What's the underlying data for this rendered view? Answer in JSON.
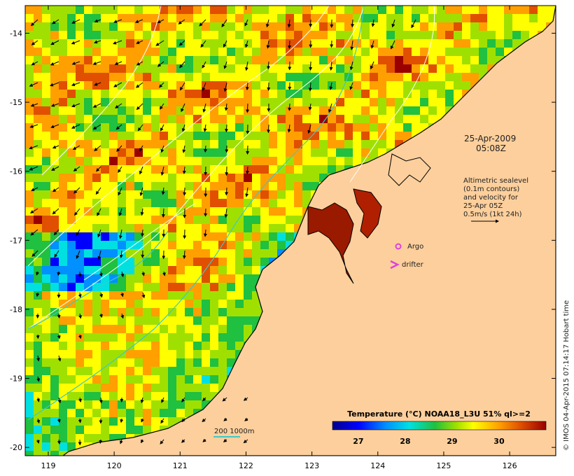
{
  "map": {
    "x_axis": {
      "min": 118.65,
      "max": 126.7,
      "ticks": [
        119,
        120,
        121,
        122,
        123,
        124,
        125,
        126
      ]
    },
    "y_axis": {
      "min": -20.12,
      "max": -13.6,
      "ticks": [
        -14,
        -15,
        -16,
        -17,
        -18,
        -19,
        -20
      ]
    },
    "colors": {
      "land": "#fccf9c",
      "coast": "#000000",
      "contour": "#ffffff",
      "isobath": "#3fc8c8",
      "arrow": "#000000",
      "argo": "#e040e0"
    }
  },
  "annotations": {
    "date": "25-Apr-2009",
    "time": "05:08Z",
    "note_lines": [
      "Altimetric sealevel",
      "(0.1m contours)",
      "and velocity for",
      "25-Apr 05Z",
      "0.5m/s (1kt 24h)"
    ],
    "argo_label": "Argo",
    "drifter_label": "drifter",
    "isobath_label": "200  1000m"
  },
  "colorbar": {
    "title": "Temperature (°C) NOAA18_L3U 51% ql>=2",
    "ticks": [
      "27",
      "28",
      "29",
      "30"
    ],
    "tick_values": [
      27,
      28,
      29,
      30
    ],
    "range": [
      26.45,
      31.0
    ]
  },
  "credit": "© IMOS 04-Apr-2015 07:14:17 Hobart time"
}
